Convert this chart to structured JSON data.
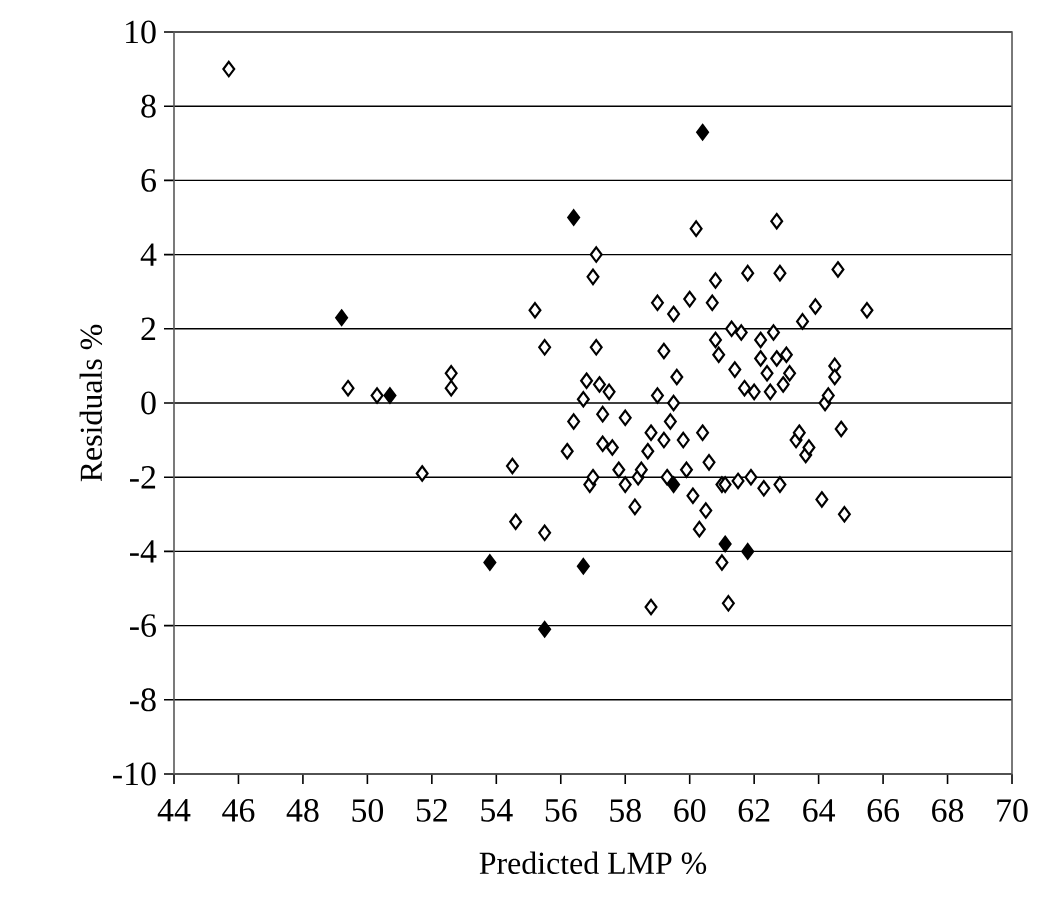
{
  "chart_data": {
    "type": "scatter",
    "xlabel": "Predicted LMP %",
    "ylabel": "Residuals %",
    "xlim": [
      44,
      70
    ],
    "ylim": [
      -10,
      10
    ],
    "xticks": [
      44,
      46,
      48,
      50,
      52,
      54,
      56,
      58,
      60,
      62,
      64,
      66,
      68,
      70
    ],
    "yticks": [
      -10,
      -8,
      -6,
      -4,
      -2,
      0,
      2,
      4,
      6,
      8,
      10
    ],
    "grid": "y",
    "marker": "diamond",
    "series": [
      {
        "color": "#ffffff",
        "x": [
          45.7,
          49.4,
          50.3,
          51.7,
          52.6,
          52.6,
          54.5,
          54.6,
          55.2,
          55.5,
          55.5,
          56.2,
          56.4,
          56.7,
          56.8,
          56.9,
          57.0,
          57.1,
          57.0,
          57.1,
          57.2,
          57.3,
          57.3,
          57.5,
          57.6,
          57.8,
          58.0,
          58.0,
          58.3,
          58.4,
          58.5,
          58.7,
          58.8,
          58.8,
          59.0,
          59.0,
          59.2,
          59.2,
          59.3,
          59.4,
          59.5,
          59.5,
          59.6,
          59.8,
          59.9,
          60.1,
          60.0,
          60.2,
          60.3,
          60.4,
          60.5,
          60.6,
          60.7,
          60.8,
          60.8,
          60.9,
          61.0,
          61.0,
          61.1,
          61.2,
          61.3,
          61.4,
          61.5,
          61.6,
          61.7,
          61.8,
          61.9,
          62.0,
          62.2,
          62.2,
          62.3,
          62.4,
          62.5,
          62.6,
          62.7,
          62.8,
          62.8,
          62.7,
          62.9,
          63.0,
          63.1,
          63.3,
          63.4,
          63.5,
          63.6,
          63.7,
          63.9,
          64.1,
          64.2,
          64.3,
          64.5,
          64.5,
          64.6,
          64.7,
          64.8,
          65.5
        ],
        "values": [
          9.0,
          0.4,
          0.2,
          -1.9,
          0.8,
          0.4,
          -1.7,
          -3.2,
          2.5,
          1.5,
          -3.5,
          -1.3,
          -0.5,
          0.1,
          0.6,
          -2.2,
          -2.0,
          1.5,
          3.4,
          4.0,
          0.5,
          -0.3,
          -1.1,
          0.3,
          -1.2,
          -1.8,
          -0.4,
          -2.2,
          -2.8,
          -2.0,
          -1.8,
          -1.3,
          -0.8,
          -5.5,
          0.2,
          2.7,
          1.4,
          -1.0,
          -2.0,
          -0.5,
          0.0,
          2.4,
          0.7,
          -1.0,
          -1.8,
          -2.5,
          2.8,
          4.7,
          -3.4,
          -0.8,
          -2.9,
          -1.6,
          2.7,
          1.7,
          3.3,
          1.3,
          -2.2,
          -4.3,
          -2.2,
          -5.4,
          2.0,
          0.9,
          -2.1,
          1.9,
          0.4,
          3.5,
          -2.0,
          0.3,
          1.7,
          1.2,
          -2.3,
          0.8,
          0.3,
          1.9,
          1.2,
          -2.2,
          3.5,
          4.9,
          0.5,
          1.3,
          0.8,
          -1.0,
          -0.8,
          2.2,
          -1.4,
          -1.2,
          2.6,
          -2.6,
          0.0,
          0.2,
          1.0,
          0.7,
          3.6,
          -0.7,
          -3.0,
          2.5
        ]
      },
      {
        "color": "#000000",
        "x": [
          49.2,
          50.7,
          53.8,
          55.5,
          56.4,
          56.7,
          59.5,
          60.4,
          61.1,
          61.8
        ],
        "values": [
          2.3,
          0.2,
          -4.3,
          -6.1,
          5.0,
          -4.4,
          -2.2,
          7.3,
          -3.8,
          -4.0
        ]
      }
    ]
  }
}
